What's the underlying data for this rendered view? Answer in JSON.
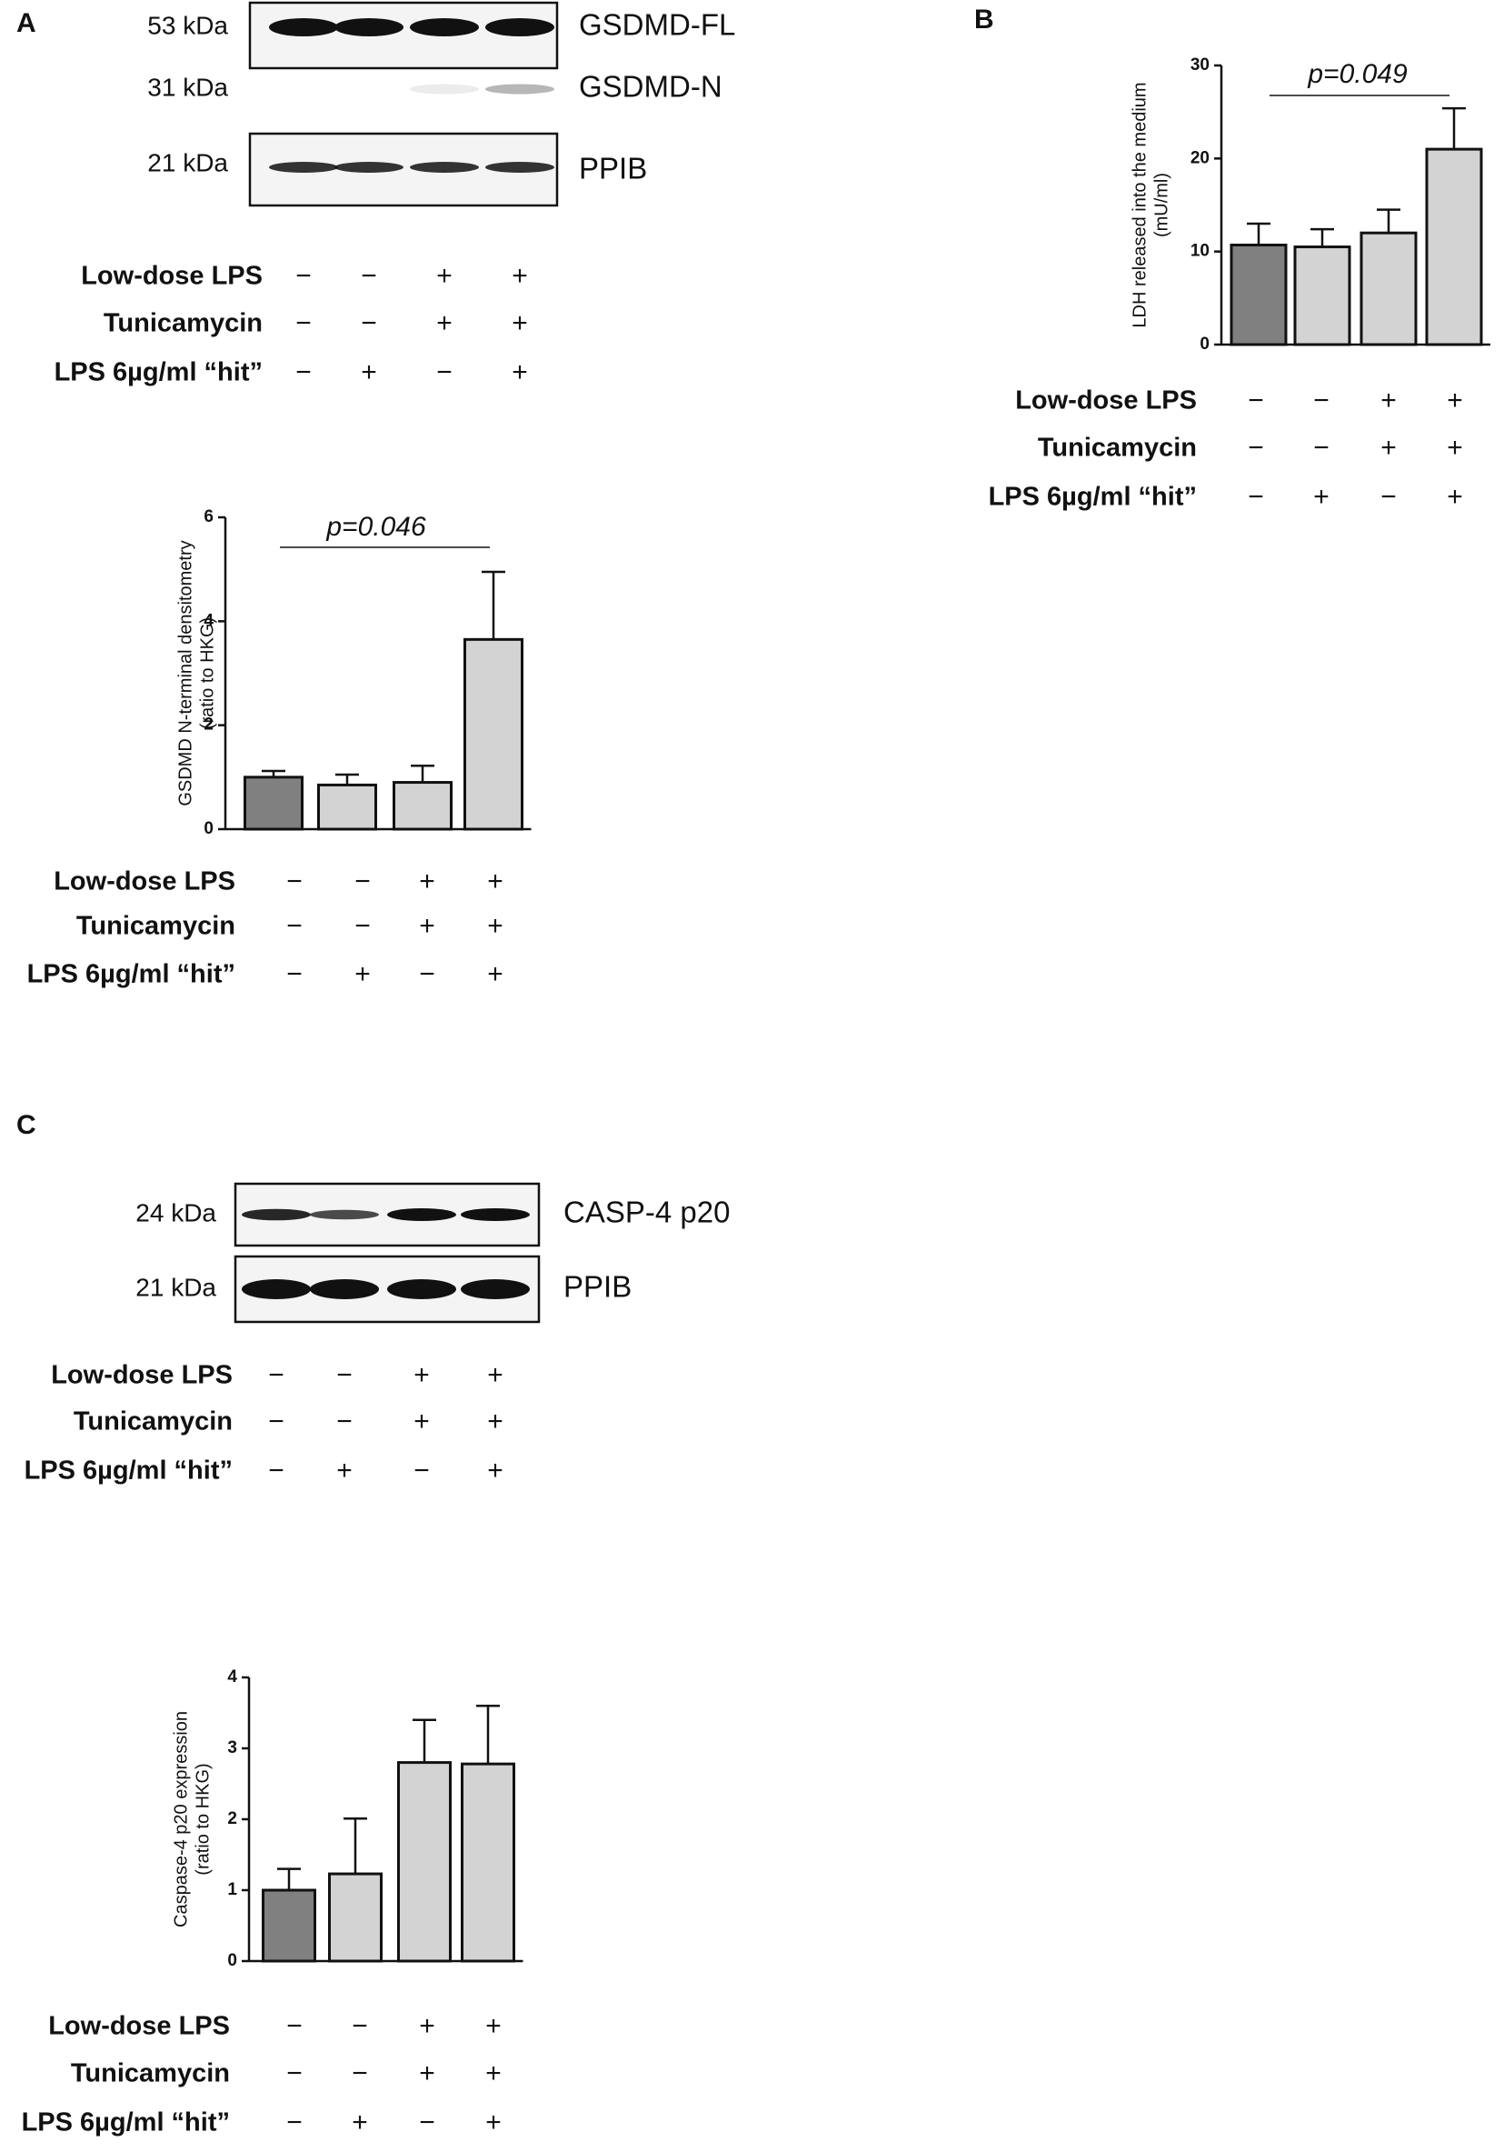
{
  "panel_labels": [
    "A",
    "B",
    "C"
  ],
  "blots": [
    {
      "bands": [
        {
          "size": "53 kDa",
          "name": "GSDMD-FL"
        },
        {
          "size": "31 kDa",
          "name": "GSDMD-N"
        }
      ]
    },
    {
      "bands": [
        {
          "size": "21 kDa",
          "name": "PPIB"
        }
      ]
    },
    {
      "bands": [
        {
          "size": "24 kDa",
          "name": "CASP-4 p20"
        }
      ]
    },
    {
      "bands": [
        {
          "size": "21 kDa",
          "name": "PPIB"
        }
      ]
    }
  ],
  "condition_tables": [
    {
      "rows": [
        {
          "label": "Low-dose LPS",
          "signs": [
            "−",
            "−",
            "+",
            "+"
          ]
        },
        {
          "label": "Tunicamycin",
          "signs": [
            "−",
            "−",
            "+",
            "+"
          ]
        },
        {
          "label": "LPS 6µg/ml “hit”",
          "signs": [
            "−",
            "+",
            "−",
            "+"
          ]
        }
      ]
    },
    {
      "rows": [
        {
          "label": "Low-dose LPS",
          "signs": [
            "−",
            "−",
            "+",
            "+"
          ]
        },
        {
          "label": "Tunicamycin",
          "signs": [
            "−",
            "−",
            "+",
            "+"
          ]
        },
        {
          "label": "LPS 6µg/ml “hit”",
          "signs": [
            "−",
            "+",
            "−",
            "+"
          ]
        }
      ]
    },
    {
      "rows": [
        {
          "label": "Low-dose LPS",
          "signs": [
            "−",
            "−",
            "+",
            "+"
          ]
        },
        {
          "label": "Tunicamycin",
          "signs": [
            "−",
            "−",
            "+",
            "+"
          ]
        },
        {
          "label": "LPS 6µg/ml “hit”",
          "signs": [
            "−",
            "+",
            "−",
            "+"
          ]
        }
      ]
    },
    {
      "rows": [
        {
          "label": "Low-dose LPS",
          "signs": [
            "−",
            "−",
            "+",
            "+"
          ]
        },
        {
          "label": "Tunicamycin",
          "signs": [
            "−",
            "−",
            "+",
            "+"
          ]
        },
        {
          "label": "LPS 6µg/ml “hit”",
          "signs": [
            "−",
            "+",
            "−",
            "+"
          ]
        }
      ]
    },
    {
      "rows": [
        {
          "label": "Low-dose LPS",
          "signs": [
            "−",
            "−",
            "+",
            "+"
          ]
        },
        {
          "label": "Tunicamycin",
          "signs": [
            "−",
            "−",
            "+",
            "+"
          ]
        },
        {
          "label": "LPS 6µg/ml “hit”",
          "signs": [
            "−",
            "+",
            "−",
            "+"
          ]
        }
      ]
    }
  ],
  "chart_data": [
    {
      "type": "bar",
      "ylabel": [
        "GSDMD N-terminal densitometry",
        "(ratio to HKG)"
      ],
      "values": [
        1.0,
        0.85,
        0.9,
        3.65
      ],
      "errors": [
        0.12,
        0.2,
        0.32,
        1.3
      ],
      "colors": [
        "#808080",
        "#d3d3d3",
        "#d3d3d3",
        "#d3d3d3"
      ],
      "ylim": [
        0,
        6
      ],
      "yticks": [
        0,
        2,
        4,
        6
      ],
      "annotation": "p=0.046"
    },
    {
      "type": "bar",
      "ylabel": [
        "LDH released into the medium",
        "(mU/ml)"
      ],
      "values": [
        10.7,
        10.5,
        12,
        21
      ],
      "errors": [
        2.3,
        1.9,
        2.5,
        4.4
      ],
      "colors": [
        "#808080",
        "#d3d3d3",
        "#d3d3d3",
        "#d3d3d3"
      ],
      "ylim": [
        0,
        30
      ],
      "yticks": [
        0,
        10,
        20,
        30
      ],
      "annotation": "p=0.049"
    },
    {
      "type": "bar",
      "ylabel": [
        "Caspase-4 p20 expression",
        "(ratio to HKG)"
      ],
      "values": [
        1.0,
        1.23,
        2.8,
        2.78
      ],
      "errors": [
        0.3,
        0.78,
        0.6,
        0.82
      ],
      "colors": [
        "#808080",
        "#d3d3d3",
        "#d3d3d3",
        "#d3d3d3"
      ],
      "ylim": [
        0,
        4
      ],
      "yticks": [
        0,
        1,
        2,
        3,
        4
      ]
    }
  ]
}
